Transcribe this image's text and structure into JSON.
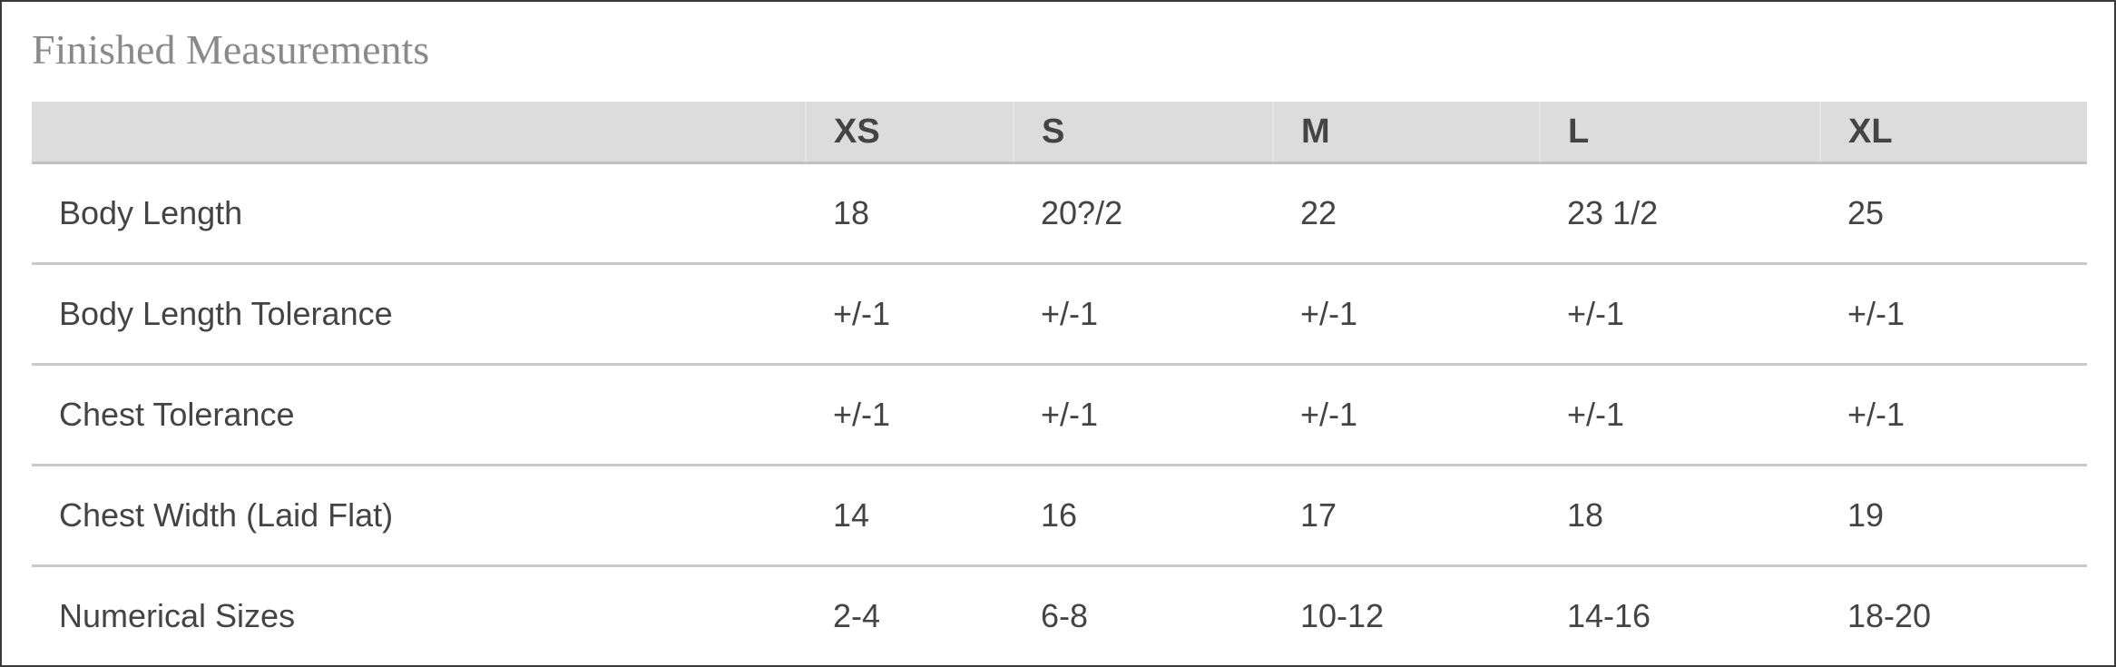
{
  "title": "Finished Measurements",
  "columns": [
    "",
    "XS",
    "S",
    "M",
    "L",
    "XL"
  ],
  "rows": [
    {
      "label": "Body Length",
      "values": [
        "18",
        "20?/2",
        "22",
        "23 1/2",
        "25"
      ]
    },
    {
      "label": "Body Length Tolerance",
      "values": [
        "+/-1",
        "+/-1",
        "+/-1",
        "+/-1",
        "+/-1"
      ]
    },
    {
      "label": "Chest Tolerance",
      "values": [
        "+/-1",
        "+/-1",
        "+/-1",
        "+/-1",
        "+/-1"
      ]
    },
    {
      "label": "Chest Width (Laid Flat)",
      "values": [
        "14",
        "16",
        "17",
        "18",
        "19"
      ]
    },
    {
      "label": "Numerical Sizes",
      "values": [
        "2-4",
        "6-8",
        "10-12",
        "14-16",
        "18-20"
      ]
    }
  ]
}
